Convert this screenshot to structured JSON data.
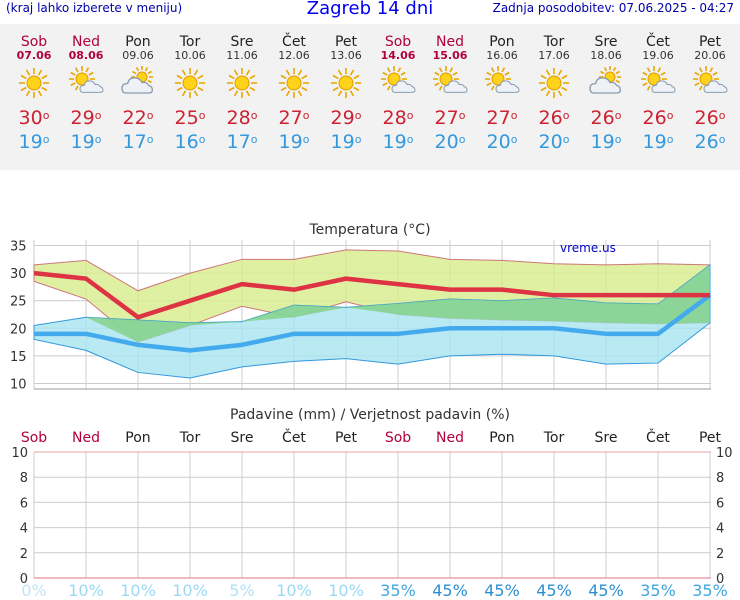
{
  "header": {
    "left": "(kraj lahko izberete v meniju)",
    "title": "Zagreb 14 dni",
    "right": "Zadnja posodobitev: 07.06.2025 - 04:27"
  },
  "days": [
    {
      "name": "Sob",
      "date": "07.06",
      "weekend": true,
      "icon": "sun-icon",
      "tmax": "30",
      "tmin": "19"
    },
    {
      "name": "Ned",
      "date": "08.06",
      "weekend": true,
      "icon": "sun-cloud-icon",
      "tmax": "29",
      "tmin": "19"
    },
    {
      "name": "Pon",
      "date": "09.06",
      "weekend": false,
      "icon": "cloud-sun-icon",
      "tmax": "22",
      "tmin": "17"
    },
    {
      "name": "Tor",
      "date": "10.06",
      "weekend": false,
      "icon": "sun-icon",
      "tmax": "25",
      "tmin": "16"
    },
    {
      "name": "Sre",
      "date": "11.06",
      "weekend": false,
      "icon": "sun-icon",
      "tmax": "28",
      "tmin": "17"
    },
    {
      "name": "Čet",
      "date": "12.06",
      "weekend": false,
      "icon": "sun-icon",
      "tmax": "27",
      "tmin": "19"
    },
    {
      "name": "Pet",
      "date": "13.06",
      "weekend": false,
      "icon": "sun-icon",
      "tmax": "29",
      "tmin": "19"
    },
    {
      "name": "Sob",
      "date": "14.06",
      "weekend": true,
      "icon": "sun-cloud-icon",
      "tmax": "28",
      "tmin": "19"
    },
    {
      "name": "Ned",
      "date": "15.06",
      "weekend": true,
      "icon": "sun-cloud-icon",
      "tmax": "27",
      "tmin": "20"
    },
    {
      "name": "Pon",
      "date": "16.06",
      "weekend": false,
      "icon": "sun-cloud-icon",
      "tmax": "27",
      "tmin": "20"
    },
    {
      "name": "Tor",
      "date": "17.06",
      "weekend": false,
      "icon": "sun-icon",
      "tmax": "26",
      "tmin": "20"
    },
    {
      "name": "Sre",
      "date": "18.06",
      "weekend": false,
      "icon": "cloud-sun-icon",
      "tmax": "26",
      "tmin": "19"
    },
    {
      "name": "Čet",
      "date": "19.06",
      "weekend": false,
      "icon": "sun-cloud-icon",
      "tmax": "26",
      "tmin": "19"
    },
    {
      "name": "Pet",
      "date": "20.06",
      "weekend": false,
      "icon": "sun-cloud-icon",
      "tmax": "26",
      "tmin": "26"
    }
  ],
  "degree_symbol": "o",
  "chart_data": [
    {
      "type": "line",
      "title": "Temperatura (°C)",
      "watermark": "vreme.us",
      "ylim": [
        9,
        36
      ],
      "yticks": [
        10,
        15,
        20,
        25,
        30,
        35
      ],
      "grid": true,
      "series": [
        {
          "role": "max",
          "color": "#dd3344",
          "values": [
            30,
            29,
            22,
            25,
            28,
            27,
            29,
            28,
            27,
            27,
            26,
            26,
            26,
            26
          ]
        },
        {
          "role": "max-band-upper",
          "color": "#d8ec8c",
          "values": [
            31.5,
            32.3,
            26.8,
            30,
            32.5,
            32.5,
            34.2,
            34,
            32.5,
            32.3,
            31.7,
            31.5,
            31.7,
            31.5
          ]
        },
        {
          "role": "max-band-lower",
          "values": [
            28.5,
            25.3,
            17.5,
            20.5,
            24,
            22,
            24.8,
            22.5,
            21.8,
            21.5,
            21.3,
            21,
            20.8,
            21
          ]
        },
        {
          "role": "min",
          "color": "#44aaee",
          "values": [
            19,
            19,
            17,
            16,
            17,
            19,
            19,
            19,
            20,
            20,
            20,
            19,
            19,
            26
          ]
        },
        {
          "role": "min-band-upper",
          "color": "#a8e4f0",
          "values": [
            20.5,
            22,
            21.5,
            21,
            21.2,
            24.2,
            23.8,
            24.5,
            25.3,
            25,
            25.5,
            24.6,
            24.4,
            31.5
          ]
        },
        {
          "role": "min-band-lower",
          "values": [
            18,
            16,
            12,
            11,
            13,
            14,
            14.5,
            13.5,
            15,
            15.3,
            15,
            13.5,
            13.7,
            21
          ]
        }
      ]
    },
    {
      "type": "bar",
      "title": "Padavine (mm) / Verjetnost padavin (%)",
      "ylim": [
        0,
        10
      ],
      "yticks": [
        0,
        2,
        4,
        6,
        8,
        10
      ],
      "categories": [
        "Sob",
        "Ned",
        "Pon",
        "Tor",
        "Sre",
        "Čet",
        "Pet",
        "Sob",
        "Ned",
        "Pon",
        "Tor",
        "Sre",
        "Čet",
        "Pet"
      ],
      "values": [
        0,
        0,
        0,
        0,
        0,
        0,
        0,
        0,
        0,
        0,
        0,
        0,
        0,
        0
      ],
      "probability": [
        "0%",
        "10%",
        "10%",
        "10%",
        "5%",
        "10%",
        "10%",
        "35%",
        "45%",
        "45%",
        "45%",
        "45%",
        "35%",
        "35%"
      ],
      "probability_colors": [
        "#bfe6f7",
        "#9cd8f2",
        "#9cd8f2",
        "#9cd8f2",
        "#b3e1f5",
        "#9cd8f2",
        "#9cd8f2",
        "#40a6dc",
        "#2e8fd0",
        "#2e8fd0",
        "#2e8fd0",
        "#2e8fd0",
        "#40a6dc",
        "#40a6dc"
      ]
    }
  ]
}
